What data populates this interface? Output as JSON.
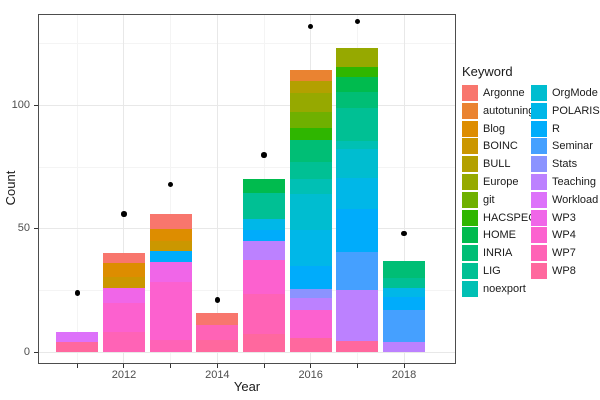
{
  "chart_data": {
    "type": "bar",
    "stacked": true,
    "title": "",
    "xlabel": "Year",
    "ylabel": "Count",
    "legend_title": "Keyword",
    "legend_position": "right",
    "grid": true,
    "x_major_ticks": [
      2012,
      2014,
      2016,
      2018
    ],
    "x_minor_ticks": [
      2011,
      2013,
      2015,
      2017
    ],
    "x_tick_labels": [
      "2012",
      "2014",
      "2016",
      "2018"
    ],
    "y_major_ticks": [
      0,
      50,
      100
    ],
    "y_minor_ticks": [
      25,
      75,
      125
    ],
    "y_tick_labels": [
      "0",
      "50",
      "100"
    ],
    "ylim": [
      0,
      137
    ],
    "keywords": [
      {
        "name": "Argonne",
        "color": "#F8766D"
      },
      {
        "name": "autotuning",
        "color": "#EA8331"
      },
      {
        "name": "Blog",
        "color": "#DD8D00"
      },
      {
        "name": "BOINC",
        "color": "#CB9700"
      },
      {
        "name": "BULL",
        "color": "#B3A000"
      },
      {
        "name": "Europe",
        "color": "#96A900"
      },
      {
        "name": "git",
        "color": "#6FB000"
      },
      {
        "name": "HACSPECIS",
        "color": "#2FB600"
      },
      {
        "name": "HOME",
        "color": "#00BB4E"
      },
      {
        "name": "INRIA",
        "color": "#00BE75"
      },
      {
        "name": "LIG",
        "color": "#00C094"
      },
      {
        "name": "noexport",
        "color": "#00C0B4"
      },
      {
        "name": "OrgMode",
        "color": "#00BDD0"
      },
      {
        "name": "POLARIS",
        "color": "#00B7E8"
      },
      {
        "name": "R",
        "color": "#00ACFB"
      },
      {
        "name": "Seminar",
        "color": "#45A0FF"
      },
      {
        "name": "Stats",
        "color": "#8B93FF"
      },
      {
        "name": "Teaching",
        "color": "#BC81FF"
      },
      {
        "name": "Workload",
        "color": "#DD71FA"
      },
      {
        "name": "WP3",
        "color": "#F066E8"
      },
      {
        "name": "WP4",
        "color": "#FC61CF"
      },
      {
        "name": "WP7",
        "color": "#FF63B6"
      },
      {
        "name": "WP8",
        "color": "#FF689E"
      }
    ],
    "bars": [
      {
        "year": 2011,
        "total": 8,
        "segments": [
          {
            "keyword": "WP8",
            "value": 4
          },
          {
            "keyword": "Workload",
            "value": 4
          }
        ]
      },
      {
        "year": 2012,
        "total": 40,
        "segments": [
          {
            "keyword": "WP7",
            "value": 8
          },
          {
            "keyword": "WP4",
            "value": 12
          },
          {
            "keyword": "WP3",
            "value": 6
          },
          {
            "keyword": "BOINC",
            "value": 4.5
          },
          {
            "keyword": "Blog",
            "value": 5.5
          },
          {
            "keyword": "Argonne",
            "value": 4
          }
        ]
      },
      {
        "year": 2013,
        "total": 56,
        "segments": [
          {
            "keyword": "WP7",
            "value": 5
          },
          {
            "keyword": "WP4",
            "value": 23.5
          },
          {
            "keyword": "WP3",
            "value": 8
          },
          {
            "keyword": "R",
            "value": 4.5
          },
          {
            "keyword": "BOINC",
            "value": 4
          },
          {
            "keyword": "Blog",
            "value": 5
          },
          {
            "keyword": "Argonne",
            "value": 6
          }
        ]
      },
      {
        "year": 2014,
        "total": 16,
        "segments": [
          {
            "keyword": "WP8",
            "value": 5
          },
          {
            "keyword": "WP7",
            "value": 6
          },
          {
            "keyword": "Argonne",
            "value": 5
          }
        ]
      },
      {
        "year": 2015,
        "total": 70,
        "segments": [
          {
            "keyword": "WP8",
            "value": 7.5
          },
          {
            "keyword": "WP7",
            "value": 16
          },
          {
            "keyword": "WP4",
            "value": 14
          },
          {
            "keyword": "Teaching",
            "value": 7.5
          },
          {
            "keyword": "R",
            "value": 4.5
          },
          {
            "keyword": "POLARIS",
            "value": 4.5
          },
          {
            "keyword": "LIG",
            "value": 10.5
          },
          {
            "keyword": "HOME",
            "value": 5.5
          }
        ]
      },
      {
        "year": 2016,
        "total": 114,
        "segments": [
          {
            "keyword": "WP8",
            "value": 5.5
          },
          {
            "keyword": "WP4",
            "value": 11.5
          },
          {
            "keyword": "Teaching",
            "value": 5
          },
          {
            "keyword": "Stats",
            "value": 3.5
          },
          {
            "keyword": "R",
            "value": 9.5
          },
          {
            "keyword": "POLARIS",
            "value": 14.5
          },
          {
            "keyword": "OrgMode",
            "value": 14.5
          },
          {
            "keyword": "noexport",
            "value": 6
          },
          {
            "keyword": "LIG",
            "value": 7
          },
          {
            "keyword": "INRIA",
            "value": 9
          },
          {
            "keyword": "HACSPECIS",
            "value": 5
          },
          {
            "keyword": "git",
            "value": 6.5
          },
          {
            "keyword": "Europe",
            "value": 7.5
          },
          {
            "keyword": "BULL",
            "value": 5
          },
          {
            "keyword": "autotuning",
            "value": 4.5
          }
        ]
      },
      {
        "year": 2017,
        "total": 124,
        "segments": [
          {
            "keyword": "WP8",
            "value": 4.5
          },
          {
            "keyword": "Teaching",
            "value": 20.5
          },
          {
            "keyword": "Seminar",
            "value": 15.5
          },
          {
            "keyword": "R",
            "value": 17.5
          },
          {
            "keyword": "POLARIS",
            "value": 12.5
          },
          {
            "keyword": "OrgMode",
            "value": 12
          },
          {
            "keyword": "noexport",
            "value": 3
          },
          {
            "keyword": "LIG",
            "value": 13.5
          },
          {
            "keyword": "INRIA",
            "value": 6.5
          },
          {
            "keyword": "HOME",
            "value": 6
          },
          {
            "keyword": "HACSPECIS",
            "value": 4
          },
          {
            "keyword": "Europe",
            "value": 8
          }
        ]
      },
      {
        "year": 2018,
        "total": 37,
        "segments": [
          {
            "keyword": "Teaching",
            "value": 4
          },
          {
            "keyword": "Seminar",
            "value": 13
          },
          {
            "keyword": "R",
            "value": 5.5
          },
          {
            "keyword": "POLARIS",
            "value": 3.5
          },
          {
            "keyword": "LIG",
            "value": 4
          },
          {
            "keyword": "INRIA",
            "value": 7
          }
        ]
      }
    ],
    "points": [
      {
        "year": 2011,
        "value": 24
      },
      {
        "year": 2012,
        "value": 56
      },
      {
        "year": 2013,
        "value": 68
      },
      {
        "year": 2014,
        "value": 21
      },
      {
        "year": 2015,
        "value": 80
      },
      {
        "year": 2016,
        "value": 132
      },
      {
        "year": 2017,
        "value": 134
      },
      {
        "year": 2018,
        "value": 48
      }
    ]
  }
}
